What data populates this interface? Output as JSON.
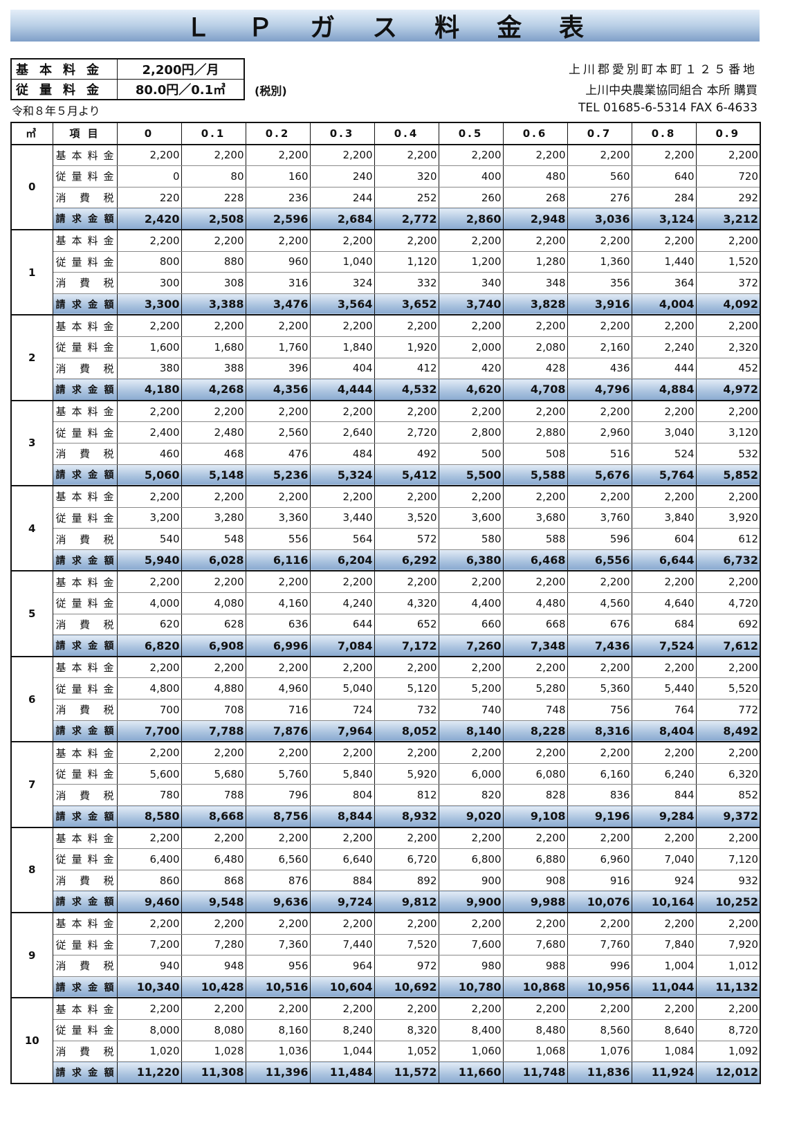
{
  "title": "ＬＰガス料金表",
  "title_display": "Ｌ Ｐ ガ ス 料 金 表",
  "rates": [
    {
      "label": "基本料金",
      "value": "2,200円／月"
    },
    {
      "label": "従量料金",
      "value": "80.0円／0.1㎥"
    }
  ],
  "tax_note": "(税別)",
  "effective_date": "令和８年５月より",
  "address": {
    "line1": "上川郡愛別町本町１２５番地",
    "line2": "上川中央農業協同組合 本所 購買",
    "line3": "TEL 01685-6-5314 FAX 6-4633"
  },
  "colors": {
    "total_row": "#a9c2de",
    "title_band": "#7f9fc8"
  },
  "table": {
    "unit_header": "㎥",
    "item_header": "項 目",
    "columns": [
      "0",
      "0.1",
      "0.2",
      "0.3",
      "0.4",
      "0.5",
      "0.6",
      "0.7",
      "0.8",
      "0.9"
    ],
    "row_labels": [
      "基本料金",
      "従量料金",
      "消費税",
      "請求金額"
    ],
    "groups": [
      {
        "m": "0",
        "rows": [
          [
            "2,200",
            "2,200",
            "2,200",
            "2,200",
            "2,200",
            "2,200",
            "2,200",
            "2,200",
            "2,200",
            "2,200"
          ],
          [
            "0",
            "80",
            "160",
            "240",
            "320",
            "400",
            "480",
            "560",
            "640",
            "720"
          ],
          [
            "220",
            "228",
            "236",
            "244",
            "252",
            "260",
            "268",
            "276",
            "284",
            "292"
          ],
          [
            "2,420",
            "2,508",
            "2,596",
            "2,684",
            "2,772",
            "2,860",
            "2,948",
            "3,036",
            "3,124",
            "3,212"
          ]
        ]
      },
      {
        "m": "1",
        "rows": [
          [
            "2,200",
            "2,200",
            "2,200",
            "2,200",
            "2,200",
            "2,200",
            "2,200",
            "2,200",
            "2,200",
            "2,200"
          ],
          [
            "800",
            "880",
            "960",
            "1,040",
            "1,120",
            "1,200",
            "1,280",
            "1,360",
            "1,440",
            "1,520"
          ],
          [
            "300",
            "308",
            "316",
            "324",
            "332",
            "340",
            "348",
            "356",
            "364",
            "372"
          ],
          [
            "3,300",
            "3,388",
            "3,476",
            "3,564",
            "3,652",
            "3,740",
            "3,828",
            "3,916",
            "4,004",
            "4,092"
          ]
        ]
      },
      {
        "m": "2",
        "rows": [
          [
            "2,200",
            "2,200",
            "2,200",
            "2,200",
            "2,200",
            "2,200",
            "2,200",
            "2,200",
            "2,200",
            "2,200"
          ],
          [
            "1,600",
            "1,680",
            "1,760",
            "1,840",
            "1,920",
            "2,000",
            "2,080",
            "2,160",
            "2,240",
            "2,320"
          ],
          [
            "380",
            "388",
            "396",
            "404",
            "412",
            "420",
            "428",
            "436",
            "444",
            "452"
          ],
          [
            "4,180",
            "4,268",
            "4,356",
            "4,444",
            "4,532",
            "4,620",
            "4,708",
            "4,796",
            "4,884",
            "4,972"
          ]
        ]
      },
      {
        "m": "3",
        "rows": [
          [
            "2,200",
            "2,200",
            "2,200",
            "2,200",
            "2,200",
            "2,200",
            "2,200",
            "2,200",
            "2,200",
            "2,200"
          ],
          [
            "2,400",
            "2,480",
            "2,560",
            "2,640",
            "2,720",
            "2,800",
            "2,880",
            "2,960",
            "3,040",
            "3,120"
          ],
          [
            "460",
            "468",
            "476",
            "484",
            "492",
            "500",
            "508",
            "516",
            "524",
            "532"
          ],
          [
            "5,060",
            "5,148",
            "5,236",
            "5,324",
            "5,412",
            "5,500",
            "5,588",
            "5,676",
            "5,764",
            "5,852"
          ]
        ]
      },
      {
        "m": "4",
        "rows": [
          [
            "2,200",
            "2,200",
            "2,200",
            "2,200",
            "2,200",
            "2,200",
            "2,200",
            "2,200",
            "2,200",
            "2,200"
          ],
          [
            "3,200",
            "3,280",
            "3,360",
            "3,440",
            "3,520",
            "3,600",
            "3,680",
            "3,760",
            "3,840",
            "3,920"
          ],
          [
            "540",
            "548",
            "556",
            "564",
            "572",
            "580",
            "588",
            "596",
            "604",
            "612"
          ],
          [
            "5,940",
            "6,028",
            "6,116",
            "6,204",
            "6,292",
            "6,380",
            "6,468",
            "6,556",
            "6,644",
            "6,732"
          ]
        ]
      },
      {
        "m": "5",
        "rows": [
          [
            "2,200",
            "2,200",
            "2,200",
            "2,200",
            "2,200",
            "2,200",
            "2,200",
            "2,200",
            "2,200",
            "2,200"
          ],
          [
            "4,000",
            "4,080",
            "4,160",
            "4,240",
            "4,320",
            "4,400",
            "4,480",
            "4,560",
            "4,640",
            "4,720"
          ],
          [
            "620",
            "628",
            "636",
            "644",
            "652",
            "660",
            "668",
            "676",
            "684",
            "692"
          ],
          [
            "6,820",
            "6,908",
            "6,996",
            "7,084",
            "7,172",
            "7,260",
            "7,348",
            "7,436",
            "7,524",
            "7,612"
          ]
        ]
      },
      {
        "m": "6",
        "rows": [
          [
            "2,200",
            "2,200",
            "2,200",
            "2,200",
            "2,200",
            "2,200",
            "2,200",
            "2,200",
            "2,200",
            "2,200"
          ],
          [
            "4,800",
            "4,880",
            "4,960",
            "5,040",
            "5,120",
            "5,200",
            "5,280",
            "5,360",
            "5,440",
            "5,520"
          ],
          [
            "700",
            "708",
            "716",
            "724",
            "732",
            "740",
            "748",
            "756",
            "764",
            "772"
          ],
          [
            "7,700",
            "7,788",
            "7,876",
            "7,964",
            "8,052",
            "8,140",
            "8,228",
            "8,316",
            "8,404",
            "8,492"
          ]
        ]
      },
      {
        "m": "7",
        "rows": [
          [
            "2,200",
            "2,200",
            "2,200",
            "2,200",
            "2,200",
            "2,200",
            "2,200",
            "2,200",
            "2,200",
            "2,200"
          ],
          [
            "5,600",
            "5,680",
            "5,760",
            "5,840",
            "5,920",
            "6,000",
            "6,080",
            "6,160",
            "6,240",
            "6,320"
          ],
          [
            "780",
            "788",
            "796",
            "804",
            "812",
            "820",
            "828",
            "836",
            "844",
            "852"
          ],
          [
            "8,580",
            "8,668",
            "8,756",
            "8,844",
            "8,932",
            "9,020",
            "9,108",
            "9,196",
            "9,284",
            "9,372"
          ]
        ]
      },
      {
        "m": "8",
        "rows": [
          [
            "2,200",
            "2,200",
            "2,200",
            "2,200",
            "2,200",
            "2,200",
            "2,200",
            "2,200",
            "2,200",
            "2,200"
          ],
          [
            "6,400",
            "6,480",
            "6,560",
            "6,640",
            "6,720",
            "6,800",
            "6,880",
            "6,960",
            "7,040",
            "7,120"
          ],
          [
            "860",
            "868",
            "876",
            "884",
            "892",
            "900",
            "908",
            "916",
            "924",
            "932"
          ],
          [
            "9,460",
            "9,548",
            "9,636",
            "9,724",
            "9,812",
            "9,900",
            "9,988",
            "10,076",
            "10,164",
            "10,252"
          ]
        ]
      },
      {
        "m": "9",
        "rows": [
          [
            "2,200",
            "2,200",
            "2,200",
            "2,200",
            "2,200",
            "2,200",
            "2,200",
            "2,200",
            "2,200",
            "2,200"
          ],
          [
            "7,200",
            "7,280",
            "7,360",
            "7,440",
            "7,520",
            "7,600",
            "7,680",
            "7,760",
            "7,840",
            "7,920"
          ],
          [
            "940",
            "948",
            "956",
            "964",
            "972",
            "980",
            "988",
            "996",
            "1,004",
            "1,012"
          ],
          [
            "10,340",
            "10,428",
            "10,516",
            "10,604",
            "10,692",
            "10,780",
            "10,868",
            "10,956",
            "11,044",
            "11,132"
          ]
        ]
      },
      {
        "m": "10",
        "rows": [
          [
            "2,200",
            "2,200",
            "2,200",
            "2,200",
            "2,200",
            "2,200",
            "2,200",
            "2,200",
            "2,200",
            "2,200"
          ],
          [
            "8,000",
            "8,080",
            "8,160",
            "8,240",
            "8,320",
            "8,400",
            "8,480",
            "8,560",
            "8,640",
            "8,720"
          ],
          [
            "1,020",
            "1,028",
            "1,036",
            "1,044",
            "1,052",
            "1,060",
            "1,068",
            "1,076",
            "1,084",
            "1,092"
          ],
          [
            "11,220",
            "11,308",
            "11,396",
            "11,484",
            "11,572",
            "11,660",
            "11,748",
            "11,836",
            "11,924",
            "12,012"
          ]
        ]
      }
    ]
  }
}
